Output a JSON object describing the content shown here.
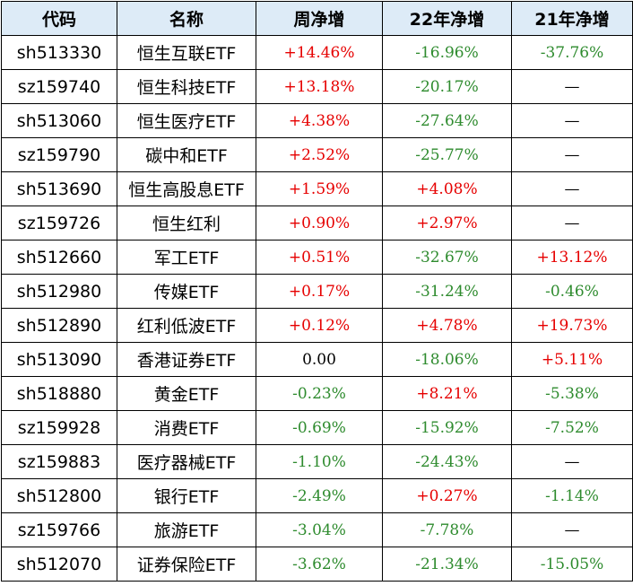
{
  "headers": [
    "代码",
    "名称",
    "周净增",
    "22年净增",
    "21年净增"
  ],
  "rows": [
    {
      "code": "sh513330",
      "name": "恒生互联ETF",
      "week": "+14.46%",
      "y22": "-16.96%",
      "y21": "-37.76%"
    },
    {
      "code": "sz159740",
      "name": "恒生科技ETF",
      "week": "+13.18%",
      "y22": "-20.17%",
      "y21": "—"
    },
    {
      "code": "sh513060",
      "name": "恒生医疗ETF",
      "week": "+4.38%",
      "y22": "-27.64%",
      "y21": "—"
    },
    {
      "code": "sz159790",
      "name": "碳中和ETF",
      "week": "+2.52%",
      "y22": "-25.77%",
      "y21": "—"
    },
    {
      "code": "sh513690",
      "name": "恒生高股息ETF",
      "week": "+1.59%",
      "y22": "+4.08%",
      "y21": "—"
    },
    {
      "code": "sz159726",
      "name": "恒生红利",
      "week": "+0.90%",
      "y22": "+2.97%",
      "y21": "—"
    },
    {
      "code": "sh512660",
      "name": "军工ETF",
      "week": "+0.51%",
      "y22": "-32.67%",
      "y21": "+13.12%"
    },
    {
      "code": "sh512980",
      "name": "传媒ETF",
      "week": "+0.17%",
      "y22": "-31.24%",
      "y21": "-0.46%"
    },
    {
      "code": "sh512890",
      "name": "红利低波ETF",
      "week": "+0.12%",
      "y22": "+4.78%",
      "y21": "+19.73%"
    },
    {
      "code": "sh513090",
      "name": "香港证券ETF",
      "week": "0.00",
      "y22": "-18.06%",
      "y21": "+5.11%"
    },
    {
      "code": "sh518880",
      "name": "黄金ETF",
      "week": "-0.23%",
      "y22": "+8.21%",
      "y21": "-5.38%"
    },
    {
      "code": "sz159928",
      "name": "消费ETF",
      "week": "-0.69%",
      "y22": "-15.92%",
      "y21": "-7.52%"
    },
    {
      "code": "sz159883",
      "name": "医疗器械ETF",
      "week": "-1.10%",
      "y22": "-24.43%",
      "y21": "—"
    },
    {
      "code": "sh512800",
      "name": "银行ETF",
      "week": "-2.49%",
      "y22": "+0.27%",
      "y21": "-1.14%"
    },
    {
      "code": "sz159766",
      "name": "旅游ETF",
      "week": "-3.04%",
      "y22": "-7.78%",
      "y21": "—"
    },
    {
      "code": "sh512070",
      "name": "证券保险ETF",
      "week": "-3.62%",
      "y22": "-21.34%",
      "y21": "-15.05%"
    }
  ],
  "colors": {
    "header_bg": "#ddebf7",
    "positive": "#e60000",
    "negative": "#2e8b2e",
    "border": "#000000"
  }
}
